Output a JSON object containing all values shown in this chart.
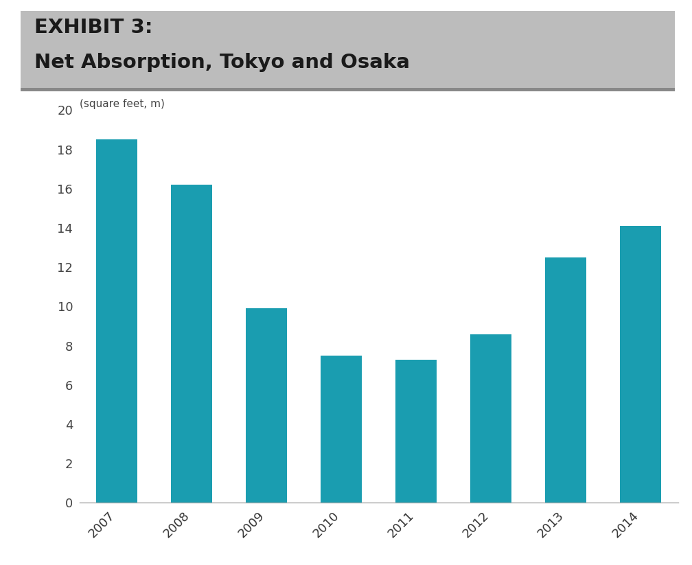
{
  "title_line1": "EXHIBIT 3:",
  "title_line2": "Net Absorption, Tokyo and Osaka",
  "subtitle": "(square feet, m)",
  "years": [
    "2007",
    "2008",
    "2009",
    "2010",
    "2011",
    "2012",
    "2013",
    "2014"
  ],
  "values": [
    18.5,
    16.2,
    9.9,
    7.5,
    7.3,
    8.6,
    12.5,
    14.1
  ],
  "bar_color": "#1a9db0",
  "header_bg_color": "#bcbcbc",
  "header_border_color": "#888888",
  "header_text_color": "#1a1a1a",
  "background_color": "#ffffff",
  "ylim": [
    0,
    20
  ],
  "yticks": [
    0,
    2,
    4,
    6,
    8,
    10,
    12,
    14,
    16,
    18,
    20
  ],
  "title_fontsize": 21,
  "subtitle_fontsize": 11,
  "tick_fontsize": 13,
  "bar_width": 0.55
}
